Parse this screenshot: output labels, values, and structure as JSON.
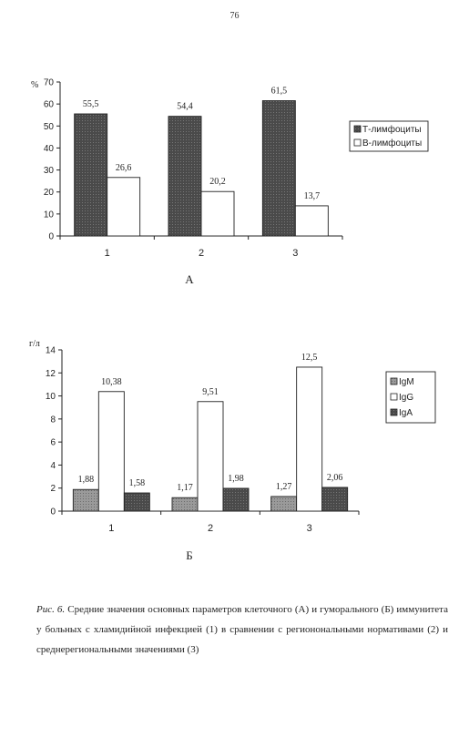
{
  "page": {
    "number": "76"
  },
  "chart_data": [
    {
      "id": "A",
      "type": "bar",
      "panel_label": "А",
      "unit_label": "%",
      "categories": [
        "1",
        "2",
        "3"
      ],
      "yticks": [
        "0",
        "10",
        "20",
        "30",
        "40",
        "50",
        "60",
        "70"
      ],
      "ylim": [
        0,
        70
      ],
      "grid": false,
      "legend_position": "right",
      "series": [
        {
          "name": "Т-лимфоциты",
          "values": [
            55.5,
            54.4,
            61.5
          ],
          "labels": [
            "55,5",
            "54,4",
            "61,5"
          ],
          "color": "#555555"
        },
        {
          "name": "В-лимфоциты",
          "values": [
            26.6,
            20.2,
            13.7
          ],
          "labels": [
            "26,6",
            "20,2",
            "13,7"
          ],
          "color": "#ffffff"
        }
      ]
    },
    {
      "id": "B",
      "type": "bar",
      "panel_label": "Б",
      "unit_label": "г/л",
      "categories": [
        "1",
        "2",
        "3"
      ],
      "yticks": [
        "0",
        "2",
        "4",
        "6",
        "8",
        "10",
        "12",
        "14"
      ],
      "ylim": [
        0,
        14
      ],
      "grid": false,
      "legend_position": "right",
      "series": [
        {
          "name": "IgM",
          "values": [
            1.88,
            1.17,
            1.27
          ],
          "labels": [
            "1,88",
            "1,17",
            "1,27"
          ],
          "color": "#8a8a8a"
        },
        {
          "name": "IgG",
          "values": [
            10.38,
            9.51,
            12.5
          ],
          "labels": [
            "10,38",
            "9,51",
            "12,5"
          ],
          "color": "#ffffff"
        },
        {
          "name": "IgA",
          "values": [
            1.58,
            1.98,
            2.06
          ],
          "labels": [
            "1,58",
            "1,98",
            "2,06"
          ],
          "color": "#5a5a5a"
        }
      ]
    }
  ],
  "caption": {
    "figure_label": "Рис. 6.",
    "text": "Средние значения основных параметров клеточного (А) и гуморального (Б) иммунитета у больных с хламидийной инфекцией (1) в сравнении с регионональными нормативами (2) и среднерегиональными значениями (3)"
  }
}
